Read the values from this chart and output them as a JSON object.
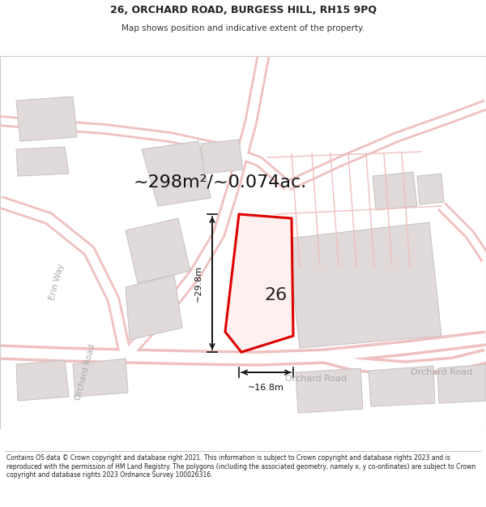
{
  "title_line1": "26, ORCHARD ROAD, BURGESS HILL, RH15 9PQ",
  "title_line2": "Map shows position and indicative extent of the property.",
  "area_text": "~298m²/~0.074ac.",
  "label_number": "26",
  "dim_width": "~16.8m",
  "dim_height": "~29.8m",
  "footer": "Contains OS data © Crown copyright and database right 2021. This information is subject to Crown copyright and database rights 2023 and is reproduced with the permission of HM Land Registry. The polygons (including the associated geometry, namely x, y co-ordinates) are subject to Crown copyright and database rights 2023 Ordnance Survey 100026316.",
  "bg_color": "#ffffff",
  "map_bg": "#f8f5f5",
  "road_color": "#f0c0c0",
  "road_inner": "#ffffff",
  "highlight_color": "#dd0000",
  "building_fill": "#e0dada",
  "building_edge": "#c8c0c0"
}
